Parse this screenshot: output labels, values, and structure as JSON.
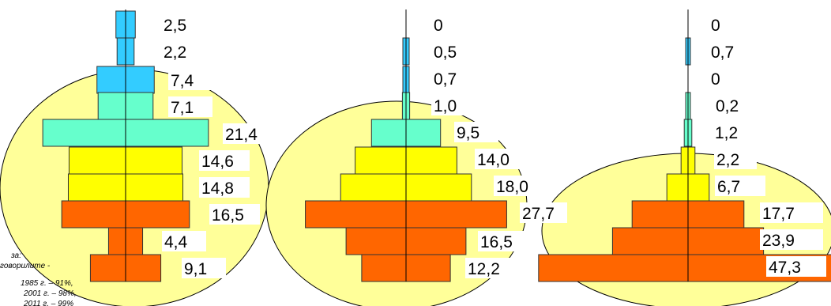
{
  "chart_data": [
    {
      "type": "bar",
      "subtype": "population-pyramid",
      "values": [
        2.5,
        2.2,
        7.4,
        7.1,
        21.4,
        14.6,
        14.8,
        16.5,
        4.4,
        9.1
      ],
      "labels": [
        "2,5",
        "2,2",
        "7,4",
        "7,1",
        "21,4",
        "14,6",
        "14,8",
        "16,5",
        "4,4",
        "9,1"
      ],
      "bar_colors": [
        "#33ccff",
        "#33ccff",
        "#33ccff",
        "#66ffcc",
        "#66ffcc",
        "#ffff00",
        "#ffff00",
        "#ff6600",
        "#ff6600",
        "#ff6600"
      ]
    },
    {
      "type": "bar",
      "subtype": "population-pyramid",
      "values": [
        0,
        0.5,
        0.7,
        1.0,
        9.5,
        14.0,
        18.0,
        27.7,
        16.5,
        12.2
      ],
      "labels": [
        "0",
        "0,5",
        "0,7",
        "1,0",
        "9,5",
        "14,0",
        "18,0",
        "27,7",
        "16,5",
        "12,2"
      ],
      "bar_colors": [
        "#33ccff",
        "#33ccff",
        "#33ccff",
        "#66ffcc",
        "#66ffcc",
        "#ffff00",
        "#ffff00",
        "#ff6600",
        "#ff6600",
        "#ff6600"
      ]
    },
    {
      "type": "bar",
      "subtype": "population-pyramid",
      "values": [
        0,
        0.7,
        0,
        0.2,
        1.2,
        2.2,
        6.7,
        17.7,
        23.9,
        47.3
      ],
      "labels": [
        "0",
        "0,7",
        "0",
        "0,2",
        "1,2",
        "2,2",
        "6,7",
        "17,7",
        "23,9",
        "47,3"
      ],
      "bar_colors": [
        "#33ccff",
        "#33ccff",
        "#33ccff",
        "#66ffcc",
        "#66ffcc",
        "#ffff00",
        "#ffff00",
        "#ff6600",
        "#ff6600",
        "#ff6600"
      ]
    }
  ],
  "note": {
    "lines": [
      "за:",
      "говорилите -",
      "1985 г. – 91%,",
      "2001 г. – 98%,",
      "2011 г. – 99%"
    ]
  },
  "colors": {
    "ellipse_fill": "#ffff99",
    "bar_border": "#333333",
    "axis": "#000000",
    "label_background": "#ffffff"
  }
}
